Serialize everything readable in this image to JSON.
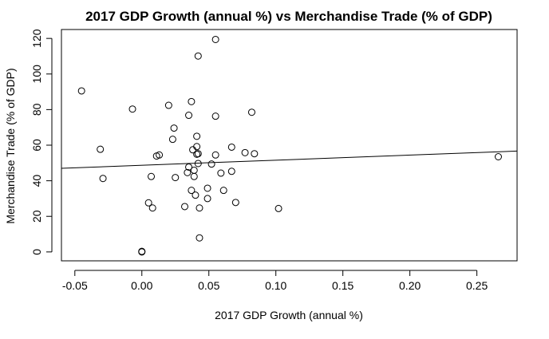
{
  "chart_data": {
    "type": "scatter",
    "title": "2017 GDP Growth (annual %) vs Merchandise Trade (% of GDP)",
    "xlabel": "2017 GDP Growth (annual %)",
    "ylabel": "Merchandise Trade (% of GDP)",
    "xlim": [
      -0.06,
      0.28
    ],
    "ylim": [
      -5,
      125
    ],
    "x_ticks": [
      -0.05,
      0.0,
      0.05,
      0.1,
      0.15,
      0.2,
      0.25
    ],
    "x_tick_labels": [
      "-0.05",
      "0.00",
      "0.05",
      "0.10",
      "0.15",
      "0.20",
      "0.25"
    ],
    "y_ticks": [
      0,
      20,
      40,
      60,
      80,
      100,
      120
    ],
    "y_tick_labels": [
      "0",
      "20",
      "40",
      "60",
      "80",
      "100",
      "120"
    ],
    "grid": false,
    "regression_line": {
      "x": [
        -0.06,
        0.28
      ],
      "y": [
        47.0,
        56.7
      ]
    },
    "series": [
      {
        "points": [
          [
            -0.045,
            90.5
          ],
          [
            -0.031,
            57.7
          ],
          [
            -0.029,
            41.3
          ],
          [
            -0.007,
            80.3
          ],
          [
            0.0,
            0.3
          ],
          [
            0.0,
            0.0
          ],
          [
            0.005,
            27.6
          ],
          [
            0.007,
            42.4
          ],
          [
            0.008,
            24.7
          ],
          [
            0.011,
            53.9
          ],
          [
            0.013,
            54.5
          ],
          [
            0.02,
            82.4
          ],
          [
            0.023,
            63.3
          ],
          [
            0.024,
            69.6
          ],
          [
            0.025,
            41.8
          ],
          [
            0.032,
            25.5
          ],
          [
            0.034,
            44.6
          ],
          [
            0.035,
            76.8
          ],
          [
            0.035,
            47.7
          ],
          [
            0.037,
            84.5
          ],
          [
            0.037,
            34.6
          ],
          [
            0.038,
            57.4
          ],
          [
            0.039,
            45.9
          ],
          [
            0.039,
            42.4
          ],
          [
            0.04,
            31.9
          ],
          [
            0.041,
            54.9
          ],
          [
            0.041,
            59.2
          ],
          [
            0.041,
            65.0
          ],
          [
            0.042,
            110.1
          ],
          [
            0.042,
            49.7
          ],
          [
            0.042,
            55.2
          ],
          [
            0.043,
            24.7
          ],
          [
            0.043,
            7.9
          ],
          [
            0.049,
            35.8
          ],
          [
            0.049,
            30.0
          ],
          [
            0.052,
            49.4
          ],
          [
            0.055,
            119.4
          ],
          [
            0.055,
            76.3
          ],
          [
            0.055,
            54.5
          ],
          [
            0.059,
            44.3
          ],
          [
            0.061,
            34.6
          ],
          [
            0.067,
            58.9
          ],
          [
            0.067,
            45.3
          ],
          [
            0.07,
            27.8
          ],
          [
            0.077,
            55.8
          ],
          [
            0.082,
            78.5
          ],
          [
            0.084,
            55.2
          ],
          [
            0.102,
            24.4
          ],
          [
            0.266,
            53.5
          ]
        ]
      }
    ]
  }
}
